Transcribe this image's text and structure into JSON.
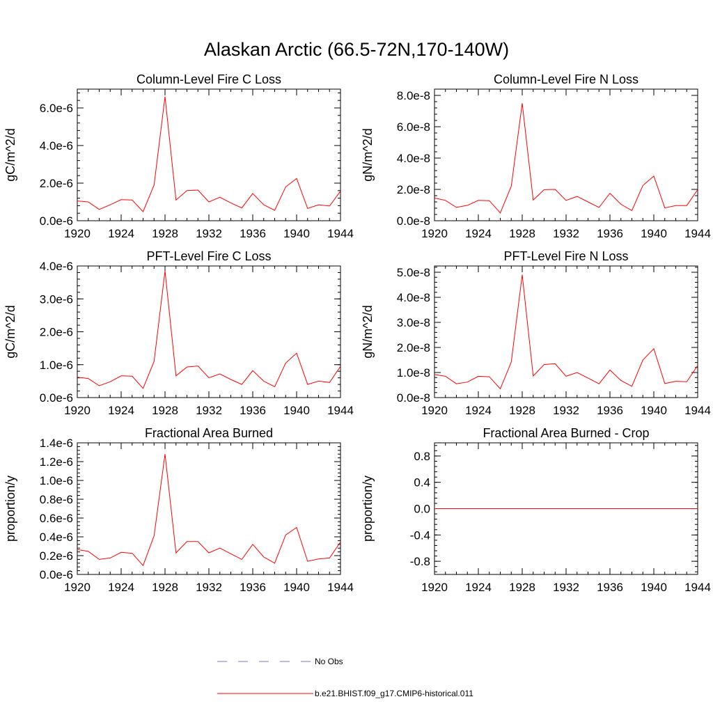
{
  "figure_title": "Alaskan Arctic (66.5-72N,170-140W)",
  "legend": [
    {
      "label": "No Obs",
      "color": "#7777cc",
      "style": "dashed"
    },
    {
      "label": "b.e21.BHIST.f09_g17.CMIP6-historical.011",
      "color": "#ff0000",
      "style": "solid"
    }
  ],
  "chart_data": [
    {
      "type": "line",
      "title": "Column-Level Fire C Loss",
      "ylabel": "gC/m^2/d",
      "x": [
        1920,
        1921,
        1922,
        1923,
        1924,
        1925,
        1926,
        1927,
        1928,
        1929,
        1930,
        1931,
        1932,
        1933,
        1934,
        1935,
        1936,
        1937,
        1938,
        1939,
        1940,
        1941,
        1942,
        1943,
        1944
      ],
      "xlim": [
        1920,
        1944
      ],
      "xticks": [
        "1920",
        "1924",
        "1928",
        "1932",
        "1936",
        "1940",
        "1944"
      ],
      "ylim": [
        0,
        7e-06
      ],
      "yticks": [
        0,
        2e-06,
        4e-06,
        6e-06
      ],
      "ytick_labels": [
        "0.0e-6",
        "2.0e-6",
        "4.0e-6",
        "6.0e-6"
      ],
      "series": [
        {
          "color": "#ff0000",
          "values": [
            1.05e-06,
            1e-06,
            6e-07,
            8.5e-07,
            1.12e-06,
            1.1e-06,
            4.8e-07,
            1.9e-06,
            6.6e-06,
            1.1e-06,
            1.6e-06,
            1.63e-06,
            1e-06,
            1.25e-06,
            9.5e-07,
            6.8e-07,
            1.45e-06,
            8.5e-07,
            5.5e-07,
            1.8e-06,
            2.25e-06,
            6.5e-07,
            8.5e-07,
            7.8e-07,
            1.57e-06
          ]
        }
      ]
    },
    {
      "type": "line",
      "title": "Column-Level Fire N Loss",
      "ylabel": "gN/m^2/d",
      "x": [
        1920,
        1921,
        1922,
        1923,
        1924,
        1925,
        1926,
        1927,
        1928,
        1929,
        1930,
        1931,
        1932,
        1933,
        1934,
        1935,
        1936,
        1937,
        1938,
        1939,
        1940,
        1941,
        1942,
        1943,
        1944
      ],
      "xlim": [
        1920,
        1944
      ],
      "xticks": [
        "1920",
        "1924",
        "1928",
        "1932",
        "1936",
        "1940",
        "1944"
      ],
      "ylim": [
        0,
        8.4e-08
      ],
      "yticks": [
        0,
        2e-08,
        4e-08,
        6e-08,
        8e-08
      ],
      "ytick_labels": [
        "0.0e-8",
        "2.0e-8",
        "4.0e-8",
        "6.0e-8",
        "8.0e-8"
      ],
      "series": [
        {
          "color": "#ff0000",
          "values": [
            1.45e-08,
            1.3e-08,
            8.5e-09,
            9.8e-09,
            1.3e-08,
            1.28e-08,
            5e-09,
            2.2e-08,
            7.5e-08,
            1.32e-08,
            1.98e-08,
            2e-08,
            1.3e-08,
            1.55e-08,
            1.2e-08,
            8.5e-09,
            1.75e-08,
            1.05e-08,
            6.5e-09,
            2.25e-08,
            2.85e-08,
            8.2e-09,
            9.7e-09,
            9.7e-09,
            1.98e-08
          ]
        }
      ]
    },
    {
      "type": "line",
      "title": "PFT-Level Fire C Loss",
      "ylabel": "gC/m^2/d",
      "x": [
        1920,
        1921,
        1922,
        1923,
        1924,
        1925,
        1926,
        1927,
        1928,
        1929,
        1930,
        1931,
        1932,
        1933,
        1934,
        1935,
        1936,
        1937,
        1938,
        1939,
        1940,
        1941,
        1942,
        1943,
        1944
      ],
      "xlim": [
        1920,
        1944
      ],
      "xticks": [
        "1920",
        "1924",
        "1928",
        "1932",
        "1936",
        "1940",
        "1944"
      ],
      "ylim": [
        0,
        4e-06
      ],
      "yticks": [
        0,
        1e-06,
        2e-06,
        3e-06,
        4e-06
      ],
      "ytick_labels": [
        "0.0e-6",
        "1.0e-6",
        "2.0e-6",
        "3.0e-6",
        "4.0e-6"
      ],
      "series": [
        {
          "color": "#ff0000",
          "values": [
            6.2e-07,
            5.8e-07,
            3.6e-07,
            4.8e-07,
            6.6e-07,
            6.5e-07,
            2.8e-07,
            1.1e-06,
            3.85e-06,
            6.6e-07,
            9.3e-07,
            9.6e-07,
            6e-07,
            7.2e-07,
            5.5e-07,
            4e-07,
            8.2e-07,
            5e-07,
            3.3e-07,
            1.05e-06,
            1.35e-06,
            4e-07,
            5e-07,
            4.6e-07,
            9.5e-07
          ]
        }
      ]
    },
    {
      "type": "line",
      "title": "PFT-Level Fire N Loss",
      "ylabel": "gN/m^2/d",
      "x": [
        1920,
        1921,
        1922,
        1923,
        1924,
        1925,
        1926,
        1927,
        1928,
        1929,
        1930,
        1931,
        1932,
        1933,
        1934,
        1935,
        1936,
        1937,
        1938,
        1939,
        1940,
        1941,
        1942,
        1943,
        1944
      ],
      "xlim": [
        1920,
        1944
      ],
      "xticks": [
        "1920",
        "1924",
        "1928",
        "1932",
        "1936",
        "1940",
        "1944"
      ],
      "ylim": [
        0,
        5.25e-08
      ],
      "yticks": [
        0,
        1e-08,
        2e-08,
        3e-08,
        4e-08,
        5e-08
      ],
      "ytick_labels": [
        "0.0e-8",
        "1.0e-8",
        "2.0e-8",
        "3.0e-8",
        "4.0e-8",
        "5.0e-8"
      ],
      "series": [
        {
          "color": "#ff0000",
          "values": [
            9.2e-09,
            8.5e-09,
            5.5e-09,
            6.2e-09,
            8.5e-09,
            8.3e-09,
            3.5e-09,
            1.42e-08,
            4.9e-08,
            8.6e-09,
            1.32e-08,
            1.35e-08,
            8.5e-09,
            1e-08,
            7.8e-09,
            5.5e-09,
            1.1e-08,
            6.8e-09,
            4.5e-09,
            1.5e-08,
            1.95e-08,
            5.6e-09,
            6.5e-09,
            6.3e-09,
            1.28e-08
          ]
        }
      ]
    },
    {
      "type": "line",
      "title": "Fractional Area Burned",
      "ylabel": "proportion/y",
      "x": [
        1920,
        1921,
        1922,
        1923,
        1924,
        1925,
        1926,
        1927,
        1928,
        1929,
        1930,
        1931,
        1932,
        1933,
        1934,
        1935,
        1936,
        1937,
        1938,
        1939,
        1940,
        1941,
        1942,
        1943,
        1944
      ],
      "xlim": [
        1920,
        1944
      ],
      "xticks": [
        "1920",
        "1924",
        "1928",
        "1932",
        "1936",
        "1940",
        "1944"
      ],
      "ylim": [
        0,
        1.4e-06
      ],
      "yticks": [
        0,
        2e-07,
        4e-07,
        6e-07,
        8e-07,
        1e-06,
        1.2e-06,
        1.4e-06
      ],
      "ytick_labels": [
        "0.0e-6",
        "0.2e-6",
        "0.4e-6",
        "0.6e-6",
        "0.8e-6",
        "1.0e-6",
        "1.2e-6",
        "1.4e-6"
      ],
      "series": [
        {
          "color": "#ff0000",
          "values": [
            2.65e-07,
            2.45e-07,
            1.6e-07,
            1.75e-07,
            2.35e-07,
            2.25e-07,
            9.5e-08,
            4.1e-07,
            1.28e-06,
            2.3e-07,
            3.5e-07,
            3.5e-07,
            2.3e-07,
            2.8e-07,
            2.2e-07,
            1.6e-07,
            3.2e-07,
            1.85e-07,
            1.2e-07,
            4.2e-07,
            5e-07,
            1.4e-07,
            1.65e-07,
            1.75e-07,
            3.45e-07
          ]
        }
      ]
    },
    {
      "type": "line",
      "title": "Fractional Area Burned - Crop",
      "ylabel": "proportion/y",
      "x": [
        1920,
        1921,
        1922,
        1923,
        1924,
        1925,
        1926,
        1927,
        1928,
        1929,
        1930,
        1931,
        1932,
        1933,
        1934,
        1935,
        1936,
        1937,
        1938,
        1939,
        1940,
        1941,
        1942,
        1943,
        1944
      ],
      "xlim": [
        1920,
        1944
      ],
      "xticks": [
        "1920",
        "1924",
        "1928",
        "1932",
        "1936",
        "1940",
        "1944"
      ],
      "ylim": [
        -1,
        1
      ],
      "yticks": [
        -0.8,
        -0.4,
        0.0,
        0.4,
        0.8
      ],
      "ytick_labels": [
        "-0.8",
        "-0.4",
        "0.0",
        "0.4",
        "0.8"
      ],
      "series": [
        {
          "color": "#ff0000",
          "values": [
            0,
            0,
            0,
            0,
            0,
            0,
            0,
            0,
            0,
            0,
            0,
            0,
            0,
            0,
            0,
            0,
            0,
            0,
            0,
            0,
            0,
            0,
            0,
            0,
            0
          ]
        }
      ]
    }
  ]
}
